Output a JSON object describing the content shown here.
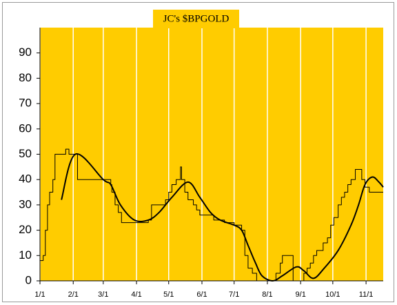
{
  "chart_data": {
    "type": "line",
    "title": "JC's $BPGOLD",
    "xlim": [
      0,
      320
    ],
    "xticks": [
      {
        "value": 0,
        "label": "1/1"
      },
      {
        "value": 31,
        "label": "2/1"
      },
      {
        "value": 59,
        "label": "3/1"
      },
      {
        "value": 90,
        "label": "4/1"
      },
      {
        "value": 120,
        "label": "5/1"
      },
      {
        "value": 151,
        "label": "6/1"
      },
      {
        "value": 181,
        "label": "7/1"
      },
      {
        "value": 212,
        "label": "8/1"
      },
      {
        "value": 243,
        "label": "9/1"
      },
      {
        "value": 273,
        "label": "10/1"
      },
      {
        "value": 304,
        "label": "11/1"
      }
    ],
    "ylim": [
      0,
      100
    ],
    "yticks": [
      0,
      10,
      20,
      30,
      40,
      50,
      60,
      70,
      80,
      90
    ],
    "grid": "x",
    "background": "#ffcc00",
    "series": [
      {
        "color": "#000000",
        "style": "step",
        "width": 1,
        "x": [
          0,
          3,
          5,
          7,
          9,
          12,
          14,
          24,
          27,
          35,
          66,
          67,
          70,
          73,
          76,
          101,
          104,
          117,
          120,
          123,
          127,
          131,
          132,
          135,
          138,
          143,
          146,
          149,
          162,
          172,
          181,
          188,
          191,
          194,
          198,
          202,
          220,
          224,
          226,
          236,
          246,
          249,
          252,
          255,
          258,
          264,
          268,
          271,
          274,
          278,
          281,
          284,
          287,
          290,
          294,
          300,
          303,
          307,
          320
        ],
        "values": [
          8,
          10,
          20,
          30,
          35,
          40,
          50,
          52,
          50,
          40,
          38,
          35,
          30,
          27,
          23,
          24,
          30,
          32,
          35,
          38,
          40,
          45,
          40,
          35,
          32,
          30,
          28,
          26,
          24,
          23,
          22,
          20,
          10,
          5,
          3,
          0,
          3,
          7,
          10,
          0,
          3,
          5,
          7,
          10,
          12,
          15,
          17,
          22,
          25,
          30,
          33,
          35,
          38,
          40,
          44,
          40,
          37,
          35,
          35
        ]
      },
      {
        "color": "#000000",
        "style": "smooth",
        "width": 2,
        "x": [
          20,
          33,
          59,
          66,
          75,
          88,
          101,
          111,
          123,
          138,
          149,
          159,
          168,
          181,
          188,
          194,
          201,
          207,
          217,
          226,
          239,
          246,
          255,
          265,
          278,
          290,
          297,
          303,
          310,
          316,
          320
        ],
        "values": [
          32,
          50,
          40,
          38,
          30,
          24,
          24,
          27,
          33,
          39,
          33,
          27,
          24,
          22,
          20,
          14,
          7,
          2,
          0,
          2,
          5.5,
          4,
          1,
          5,
          12,
          22,
          30,
          38,
          41,
          39,
          37
        ]
      }
    ]
  }
}
